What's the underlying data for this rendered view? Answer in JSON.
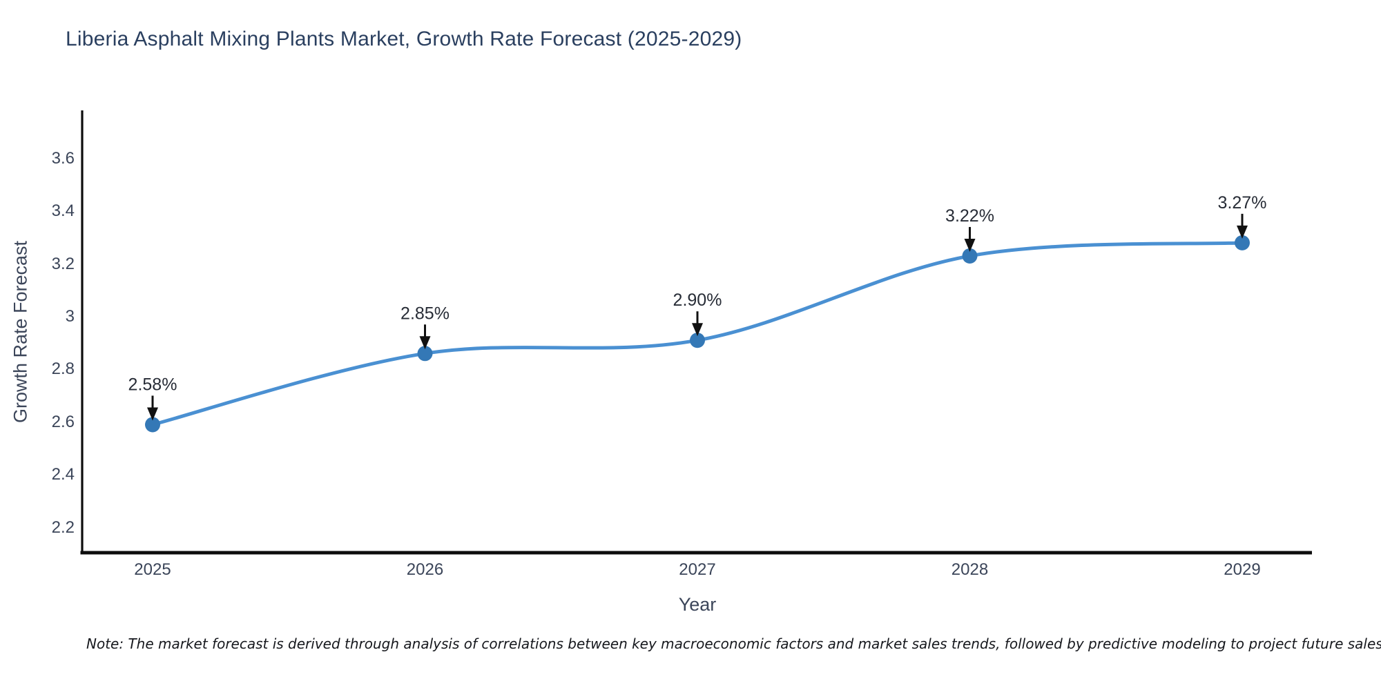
{
  "title": "Liberia Asphalt Mixing Plants Market, Growth Rate Forecast (2025-2029)",
  "note": "Note: The market forecast is derived through analysis of correlations between key macroeconomic factors and market sales trends, followed by predictive modeling to project future sales",
  "chart_data": {
    "type": "line",
    "title": "Liberia Asphalt Mixing Plants Market, Growth Rate Forecast (2025-2029)",
    "xlabel": "Year",
    "ylabel": "Growth Rate Forecast",
    "x": [
      2025,
      2026,
      2027,
      2028,
      2029
    ],
    "series": [
      {
        "name": "Growth Rate Forecast",
        "values": [
          2.58,
          2.85,
          2.9,
          3.22,
          3.27
        ]
      }
    ],
    "point_labels": [
      "2.58%",
      "2.85%",
      "2.90%",
      "3.22%",
      "3.27%"
    ],
    "x_tick_labels": [
      "2025",
      "2026",
      "2027",
      "2028",
      "2029"
    ],
    "y_tick_labels": [
      "3.6",
      "3.4",
      "3.2",
      "3",
      "2.8",
      "2.6",
      "2.4",
      "2.2"
    ],
    "y_tick_values": [
      3.6,
      3.4,
      3.2,
      3.0,
      2.8,
      2.6,
      2.4,
      2.2
    ],
    "ylim": [
      2.09,
      3.77
    ],
    "grid": false,
    "legend": "none",
    "line_style": "spline",
    "annotation_arrows": "down",
    "colors": {
      "line": "#4a90d2",
      "marker": "#3478b6",
      "axis": "#0d0d0d",
      "title_text": "#2a3f5f",
      "tick_text": "#3b4559",
      "annotation_text": "#272c36",
      "arrow": "#111111",
      "background": "#ffffff"
    }
  }
}
